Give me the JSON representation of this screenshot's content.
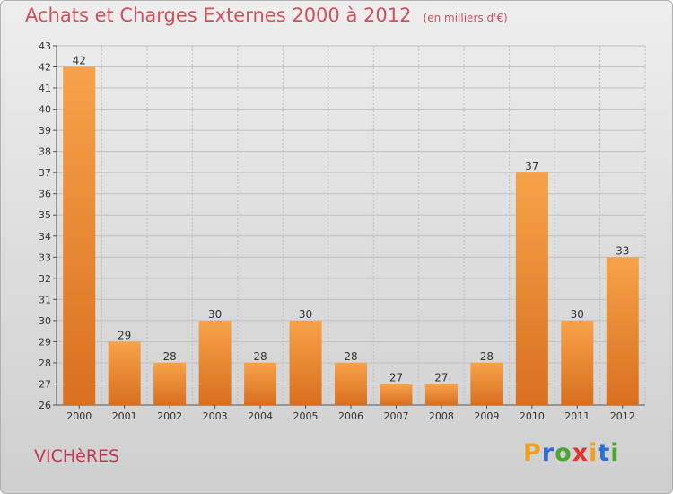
{
  "header": {
    "title": "Achats et Charges Externes 2000 à 2012",
    "unit": "(en milliers d'€)"
  },
  "footer": {
    "town": "VICHèRES",
    "logo_letters": [
      "P",
      "r",
      "o",
      "x",
      "i",
      "t",
      "i"
    ],
    "logo_colors": [
      "#f0a020",
      "#2f6fd0",
      "#49a832",
      "#e8322a",
      "#f0a020",
      "#2f6fd0",
      "#49a832"
    ]
  },
  "colors": {
    "title": "#d0505c",
    "bar_light": "#f7a24a",
    "bar_dark": "#d8701f",
    "grid": "#c0c0c0"
  },
  "chart_data": {
    "type": "bar",
    "title": "Achats et Charges Externes 2000 à 2012",
    "xlabel": "",
    "ylabel": "",
    "categories": [
      "2000",
      "2001",
      "2002",
      "2003",
      "2004",
      "2005",
      "2006",
      "2007",
      "2008",
      "2009",
      "2010",
      "2011",
      "2012"
    ],
    "values": [
      42,
      29,
      28,
      30,
      28,
      30,
      28,
      27,
      27,
      28,
      37,
      30,
      33
    ],
    "ylim": [
      26,
      43
    ],
    "yticks": [
      26,
      27,
      28,
      29,
      30,
      31,
      32,
      33,
      34,
      35,
      36,
      37,
      38,
      39,
      40,
      41,
      42,
      43
    ],
    "grid": true,
    "legend": "none"
  }
}
